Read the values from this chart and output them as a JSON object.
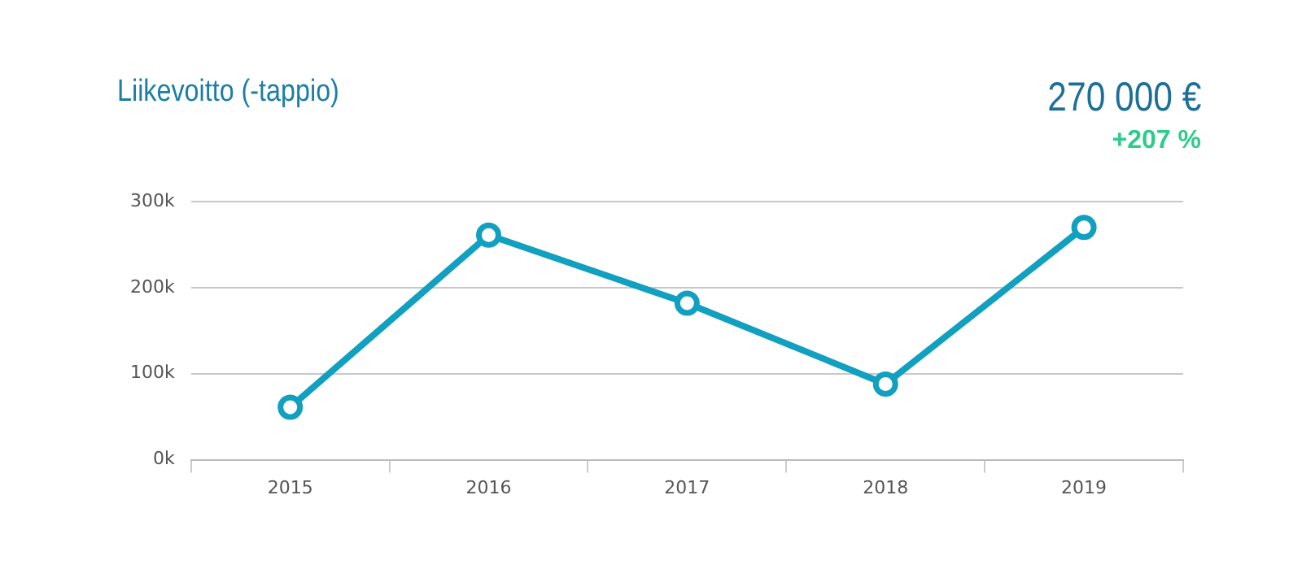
{
  "chart_data": {
    "type": "line",
    "title": "Liikevoitto (-tappio)",
    "annotations": [
      "270 000 €",
      "+207 %"
    ],
    "categories": [
      "2015",
      "2016",
      "2017",
      "2018",
      "2019"
    ],
    "series": [
      {
        "color": "#12a0c0",
        "values": [
          61,
          261,
          182,
          88,
          270
        ]
      }
    ],
    "ylim": [
      0,
      300
    ],
    "yticks": [
      {
        "value": 0,
        "label": "0k"
      },
      {
        "value": 100,
        "label": "100k"
      },
      {
        "value": 200,
        "label": "200k"
      },
      {
        "value": 300,
        "label": "300k"
      }
    ],
    "grid": "y",
    "legend": false,
    "marker": "circle",
    "line_style": "solid"
  }
}
